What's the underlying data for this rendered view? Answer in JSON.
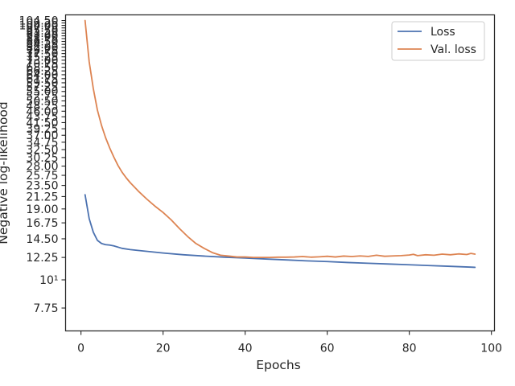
{
  "chart_data": {
    "type": "line",
    "xlabel": "Epochs",
    "ylabel": "Negative log-likelihood",
    "xlim": [
      -3.75,
      100.75
    ],
    "ylim": [
      6.3,
      110
    ],
    "yscale": "log",
    "grid": false,
    "legend_position": "top-right",
    "x_ticks": [
      0,
      20,
      40,
      60,
      80,
      100
    ],
    "x_tick_labels": [
      "0",
      "20",
      "40",
      "60",
      "80",
      "100"
    ],
    "y_ticks": [
      7.75,
      10,
      12.25,
      14.5,
      16.75,
      19.0,
      21.25,
      23.5,
      25.75,
      28.0,
      30.25,
      32.5,
      34.75,
      37.0,
      39.25,
      41.5,
      43.75,
      46.0,
      48.25,
      50.5,
      52.75,
      55.0,
      57.25,
      59.5,
      61.75,
      64.0,
      66.25,
      68.5,
      70.75,
      73.0,
      75.25,
      77.5,
      79.75,
      82.0,
      84.25,
      86.5,
      88.75,
      91.0,
      93.25,
      95.5,
      97.75,
      100.0,
      102.25,
      104.5
    ],
    "y_tick_labels": [
      "7.75",
      "10¹",
      "12.25",
      "14.50",
      "16.75",
      "19.00",
      "21.25",
      "23.50",
      "25.75",
      "28.00",
      "30.25",
      "32.50",
      "34.75",
      "37.00",
      "39.25",
      "41.50",
      "43.75",
      "46.00",
      "48.25",
      "50.50",
      "52.75",
      "55.00",
      "57.25",
      "59.50",
      "61.75",
      "64.00",
      "66.25",
      "68.50",
      "70.75",
      "73.00",
      "75.25",
      "77.50",
      "79.75",
      "82.00",
      "84.25",
      "86.50",
      "88.75",
      "91.00",
      "93.25",
      "95.50",
      "97.75",
      "100.00",
      "102.25",
      "104.50"
    ],
    "series": [
      {
        "name": "Loss",
        "color": "#4c72b0",
        "x": [
          1,
          2,
          3,
          4,
          5,
          6,
          7,
          8,
          10,
          12,
          15,
          20,
          25,
          30,
          35,
          40,
          45,
          50,
          55,
          60,
          65,
          70,
          75,
          80,
          85,
          90,
          95,
          96
        ],
        "y": [
          21.6,
          17.4,
          15.4,
          14.3,
          13.9,
          13.75,
          13.7,
          13.6,
          13.3,
          13.15,
          13.0,
          12.75,
          12.55,
          12.4,
          12.28,
          12.18,
          12.08,
          11.98,
          11.88,
          11.8,
          11.7,
          11.62,
          11.54,
          11.46,
          11.38,
          11.3,
          11.22,
          11.2
        ]
      },
      {
        "name": "Val. loss",
        "color": "#dd8452",
        "x": [
          1,
          2,
          3,
          4,
          5,
          6,
          7,
          8,
          9,
          10,
          11,
          12,
          14,
          16,
          18,
          20,
          22,
          24,
          26,
          28,
          30,
          32,
          34,
          36,
          38,
          40,
          42,
          44,
          46,
          48,
          50,
          52,
          54,
          56,
          58,
          60,
          62,
          64,
          66,
          68,
          70,
          72,
          74,
          76,
          78,
          80,
          81,
          82,
          84,
          86,
          88,
          90,
          92,
          94,
          95,
          96
        ],
        "y": [
          104.5,
          72.0,
          56.5,
          46.5,
          40.5,
          36.2,
          33.0,
          30.4,
          28.2,
          26.5,
          25.2,
          24.1,
          22.3,
          20.8,
          19.5,
          18.4,
          17.2,
          15.9,
          14.8,
          13.9,
          13.3,
          12.8,
          12.5,
          12.4,
          12.3,
          12.3,
          12.25,
          12.25,
          12.25,
          12.28,
          12.28,
          12.3,
          12.35,
          12.28,
          12.32,
          12.38,
          12.3,
          12.4,
          12.35,
          12.42,
          12.36,
          12.5,
          12.38,
          12.42,
          12.45,
          12.52,
          12.6,
          12.45,
          12.55,
          12.5,
          12.62,
          12.55,
          12.65,
          12.58,
          12.7,
          12.62
        ]
      }
    ]
  }
}
